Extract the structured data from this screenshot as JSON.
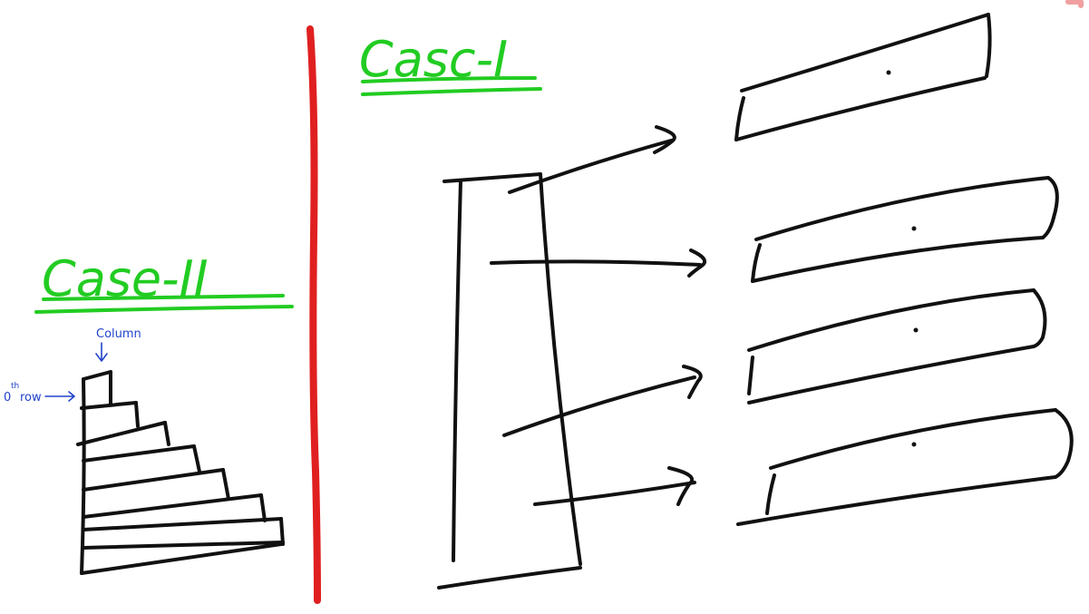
{
  "labels": {
    "case_one": "Casc-I",
    "case_two": "Case-II",
    "column_label": "Column",
    "row_label_num": "0",
    "row_label_sup": "th",
    "row_label_word": "row"
  },
  "colors": {
    "background": "#ffffff",
    "ink": "#111111",
    "divider": "#e02020",
    "heading": "#22cc22",
    "annotation": "#2244cc"
  }
}
